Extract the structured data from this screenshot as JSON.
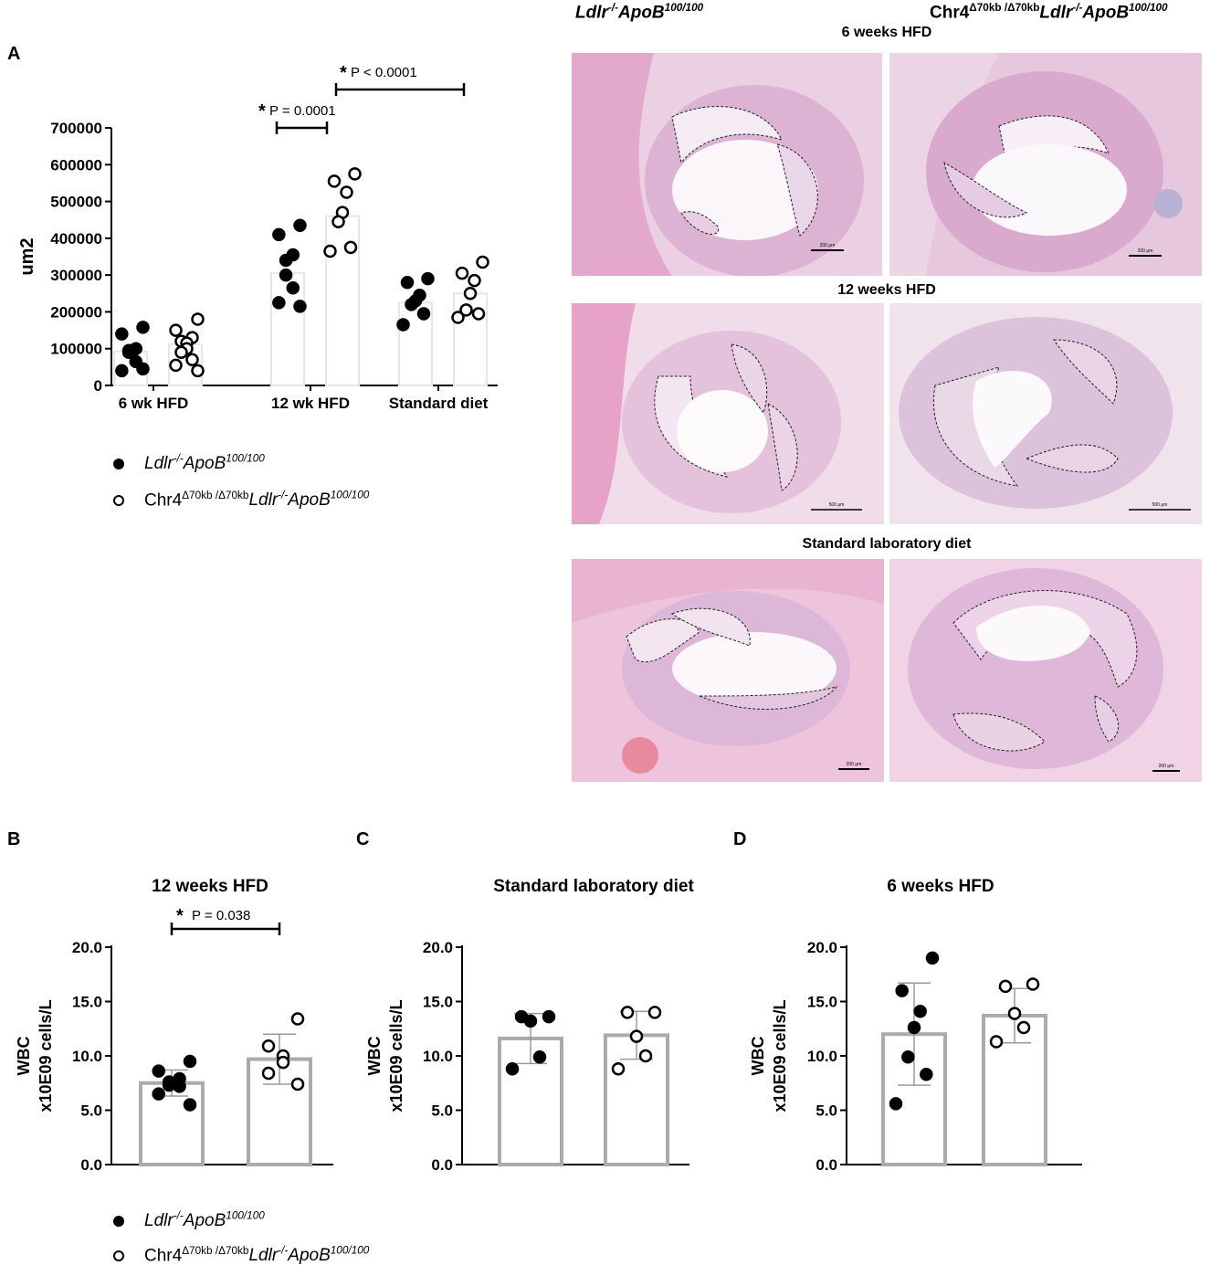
{
  "panels": {
    "a": "A",
    "b": "B",
    "c": "C",
    "d": "D"
  },
  "micrograph": {
    "col_left": {
      "pre": "Ldlr",
      "sup1": "-/-",
      "mid": "ApoB",
      "sup2": "100/100"
    },
    "col_right": {
      "chr": "Chr4",
      "sup0": "Δ70kb /Δ70kb",
      "pre": "Ldlr",
      "sup1": "-/-",
      "mid": "ApoB",
      "sup2": "100/100"
    },
    "rows": [
      "6 weeks HFD",
      "12 weeks HFD",
      "Standard laboratory diet"
    ],
    "scale_labels": [
      "200 μm",
      "200 μm",
      "500 μm",
      "500 μm",
      "200 μm",
      "200 μm"
    ]
  },
  "legend": {
    "series1": {
      "pre": "Ldlr",
      "sup1": "-/-",
      "mid": "ApoB",
      "sup2": "100/100"
    },
    "series2": {
      "chr": "Chr4",
      "sup0": "Δ70kb /Δ70kb",
      "pre": "Ldlr",
      "sup1": "-/-",
      "mid": "ApoB",
      "sup2": "100/100"
    }
  },
  "chart_data": [
    {
      "type": "scatter",
      "panel": "A",
      "ylabel": "um2",
      "ylim": [
        0,
        700000
      ],
      "yticks": [
        "0",
        "100000",
        "200000",
        "300000",
        "400000",
        "500000",
        "600000",
        "700000"
      ],
      "categories": [
        "6 wk HFD",
        "12 wk HFD",
        "Standard diet"
      ],
      "series": [
        {
          "group": [
            {
              "mean": 92000,
              "points": [
                158000,
                140000,
                100000,
                90000,
                95000,
                65000,
                40000,
                45000
              ]
            },
            {
              "mean": 305000,
              "points": [
                435000,
                410000,
                355000,
                340000,
                300000,
                265000,
                225000,
                215000
              ]
            },
            {
              "mean": 225000,
              "points": [
                290000,
                280000,
                245000,
                230000,
                220000,
                195000,
                165000
              ]
            }
          ]
        },
        {
          "group": [
            {
              "mean": 112000,
              "points": [
                180000,
                150000,
                130000,
                120000,
                115000,
                100000,
                90000,
                70000,
                55000,
                40000
              ]
            },
            {
              "mean": 460000,
              "points": [
                575000,
                555000,
                525000,
                470000,
                445000,
                375000,
                365000
              ]
            },
            {
              "mean": 250000,
              "points": [
                335000,
                305000,
                285000,
                250000,
                205000,
                195000,
                185000
              ]
            }
          ]
        }
      ],
      "annotations": [
        {
          "star": "*",
          "text": "P = 0.0001"
        },
        {
          "star": "*",
          "text": "P < 0.0001"
        }
      ]
    },
    {
      "type": "bar",
      "panel": "B",
      "title": "12 weeks HFD",
      "ylabel_1": "WBC",
      "ylabel_2": "x10E09 cells/L",
      "ylim": [
        0,
        20
      ],
      "yticks": [
        "0.0",
        "5.0",
        "10.0",
        "15.0",
        "20.0"
      ],
      "values": [
        7.5,
        9.7
      ],
      "sd": [
        1.2,
        2.3
      ],
      "points": [
        [
          9.5,
          8.6,
          7.9,
          7.6,
          7.3,
          7.2,
          6.5,
          5.5
        ],
        [
          13.4,
          10.9,
          10.0,
          9.4,
          8.4,
          7.4
        ]
      ],
      "annotation": {
        "star": "*",
        "text": "P = 0.038"
      }
    },
    {
      "type": "bar",
      "panel": "C",
      "title": "Standard laboratory diet",
      "ylabel_1": "WBC",
      "ylabel_2": "x10E09 cells/L",
      "ylim": [
        0,
        20
      ],
      "yticks": [
        "0.0",
        "5.0",
        "10.0",
        "15.0",
        "20.0"
      ],
      "values": [
        11.6,
        11.9
      ],
      "sd": [
        2.3,
        2.2
      ],
      "points": [
        [
          13.6,
          13.6,
          13.2,
          9.9,
          8.8
        ],
        [
          14.0,
          14.0,
          11.8,
          10.0,
          8.8
        ]
      ]
    },
    {
      "type": "bar",
      "panel": "D",
      "title": "6 weeks HFD",
      "ylabel_1": "WBC",
      "ylabel_2": "x10E09 cells/L",
      "ylim": [
        0,
        20
      ],
      "yticks": [
        "0.0",
        "5.0",
        "10.0",
        "15.0",
        "20.0"
      ],
      "values": [
        12.0,
        13.7
      ],
      "sd": [
        4.7,
        2.5
      ],
      "points": [
        [
          19.0,
          16.0,
          14.1,
          12.6,
          9.9,
          8.3,
          5.6
        ],
        [
          16.6,
          16.4,
          13.9,
          12.6,
          11.3
        ]
      ]
    }
  ]
}
